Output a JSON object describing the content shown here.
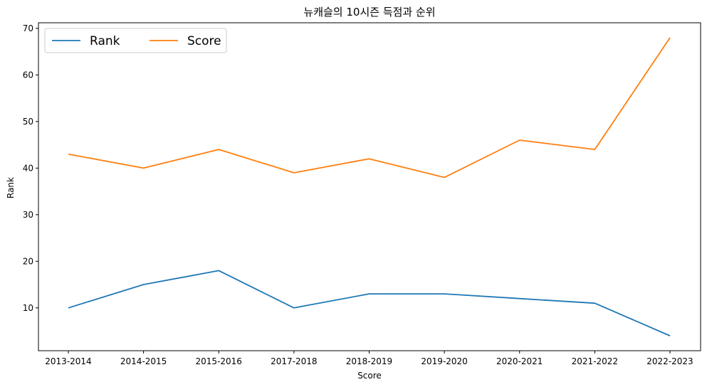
{
  "chart_data": {
    "type": "line",
    "title": "뉴캐슬의 10시즌 득점과 순위",
    "xlabel": "Score",
    "ylabel": "Rank",
    "categories": [
      "2013-2014",
      "2014-2015",
      "2015-2016",
      "2017-2018",
      "2018-2019",
      "2019-2020",
      "2020-2021",
      "2021-2022",
      "2022-2023"
    ],
    "series": [
      {
        "name": "Rank",
        "color": "#1f77b4",
        "values": [
          10,
          15,
          18,
          10,
          13,
          13,
          12,
          11,
          4
        ]
      },
      {
        "name": "Score",
        "color": "#ff7f0e",
        "values": [
          43,
          40,
          44,
          39,
          42,
          38,
          46,
          44,
          68
        ]
      }
    ],
    "ylim": [
      0.8,
      71.2
    ],
    "yticks": [
      10,
      20,
      30,
      40,
      50,
      60,
      70
    ],
    "grid": false,
    "legend_position": "top-left"
  }
}
